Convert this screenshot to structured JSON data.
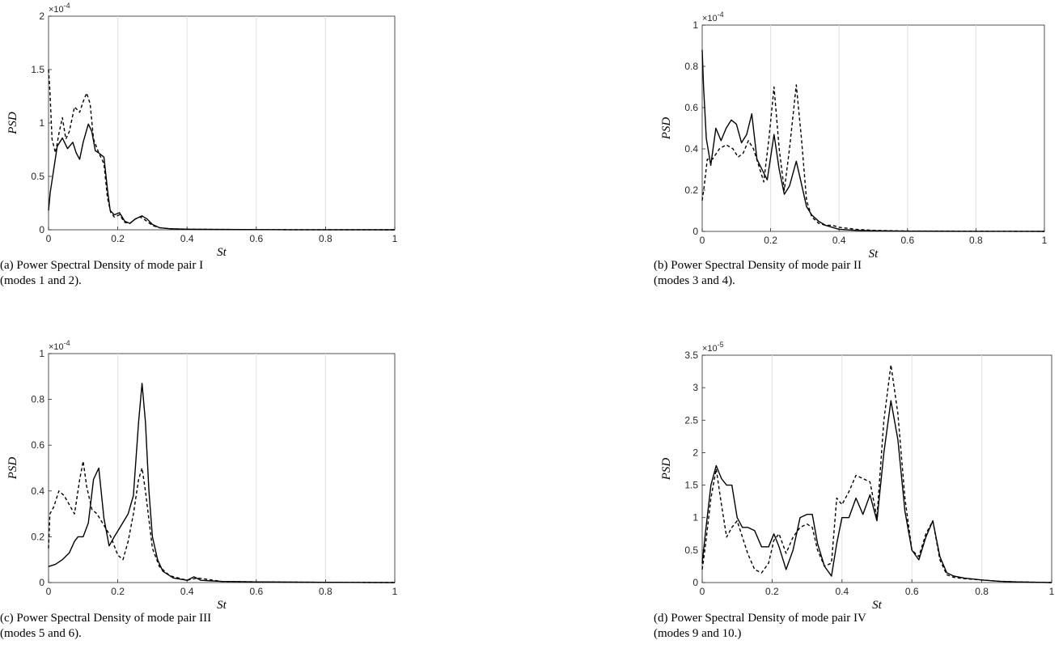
{
  "chart_data": [
    {
      "type": "line",
      "caption": "(a) Power Spectral Density of mode pair I\n(modes 1 and 2).",
      "xlabel": "St",
      "ylabel": "PSD",
      "xlim": [
        0,
        1
      ],
      "ylim": [
        0,
        2
      ],
      "xticks": [
        "0",
        "0.2",
        "0.4",
        "0.6",
        "0.8",
        "1"
      ],
      "yticks": [
        "0",
        "0.5",
        "1",
        "1.5",
        "2"
      ],
      "yexp": "-4",
      "grid": "x",
      "series": [
        {
          "style": "solid",
          "x": [
            0,
            0.005,
            0.012,
            0.025,
            0.04,
            0.055,
            0.07,
            0.08,
            0.09,
            0.1,
            0.115,
            0.125,
            0.135,
            0.145,
            0.16,
            0.17,
            0.178,
            0.19,
            0.205,
            0.22,
            0.235,
            0.25,
            0.27,
            0.285,
            0.3,
            0.32,
            0.35,
            0.4,
            0.5,
            0.7,
            1
          ],
          "y": [
            0.18,
            0.35,
            0.5,
            0.78,
            0.86,
            0.76,
            0.82,
            0.72,
            0.66,
            0.82,
            0.99,
            0.92,
            0.74,
            0.72,
            0.68,
            0.38,
            0.18,
            0.14,
            0.16,
            0.08,
            0.06,
            0.1,
            0.13,
            0.1,
            0.05,
            0.02,
            0.01,
            0.005,
            0.003,
            0.001,
            0
          ]
        },
        {
          "style": "dashed",
          "x": [
            0,
            0.004,
            0.01,
            0.02,
            0.03,
            0.04,
            0.05,
            0.06,
            0.075,
            0.09,
            0.1,
            0.11,
            0.12,
            0.13,
            0.145,
            0.16,
            0.17,
            0.18,
            0.19,
            0.205,
            0.22,
            0.235,
            0.25,
            0.265,
            0.28,
            0.3,
            0.32,
            0.35,
            0.4,
            0.5,
            0.7,
            1
          ],
          "y": [
            1.5,
            1.3,
            0.85,
            0.72,
            0.9,
            1.05,
            0.85,
            0.92,
            1.15,
            1.1,
            1.2,
            1.28,
            1.18,
            0.85,
            0.72,
            0.62,
            0.3,
            0.16,
            0.12,
            0.14,
            0.07,
            0.06,
            0.1,
            0.12,
            0.09,
            0.04,
            0.02,
            0.01,
            0.005,
            0.003,
            0.001,
            0
          ]
        }
      ]
    },
    {
      "type": "line",
      "caption": "(b) Power Spectral Density of mode pair II\n(modes 3 and 4).",
      "xlabel": "St",
      "ylabel": "PSD",
      "xlim": [
        0,
        1
      ],
      "ylim": [
        0,
        1
      ],
      "xticks": [
        "0",
        "0.2",
        "0.4",
        "0.6",
        "0.8",
        "1"
      ],
      "yticks": [
        "0",
        "0.2",
        "0.4",
        "0.6",
        "0.8",
        "1"
      ],
      "yexp": "-4",
      "grid": "x",
      "series": [
        {
          "style": "solid",
          "x": [
            0,
            0.004,
            0.012,
            0.025,
            0.04,
            0.055,
            0.07,
            0.085,
            0.1,
            0.115,
            0.13,
            0.145,
            0.16,
            0.175,
            0.19,
            0.21,
            0.225,
            0.24,
            0.255,
            0.275,
            0.29,
            0.305,
            0.32,
            0.34,
            0.36,
            0.38,
            0.4,
            0.45,
            0.5,
            0.6,
            0.8,
            1
          ],
          "y": [
            0.88,
            0.7,
            0.45,
            0.32,
            0.5,
            0.44,
            0.5,
            0.54,
            0.52,
            0.43,
            0.47,
            0.57,
            0.35,
            0.3,
            0.25,
            0.47,
            0.3,
            0.18,
            0.22,
            0.34,
            0.23,
            0.12,
            0.08,
            0.05,
            0.03,
            0.02,
            0.01,
            0.005,
            0.003,
            0.001,
            0.0005,
            0
          ]
        },
        {
          "style": "dashed",
          "x": [
            0,
            0.006,
            0.015,
            0.03,
            0.05,
            0.07,
            0.09,
            0.105,
            0.12,
            0.135,
            0.15,
            0.165,
            0.18,
            0.195,
            0.21,
            0.225,
            0.24,
            0.255,
            0.275,
            0.29,
            0.305,
            0.32,
            0.34,
            0.36,
            0.38,
            0.4,
            0.45,
            0.5,
            0.6,
            0.8,
            1
          ],
          "y": [
            0.15,
            0.22,
            0.35,
            0.35,
            0.4,
            0.42,
            0.4,
            0.36,
            0.38,
            0.44,
            0.4,
            0.32,
            0.24,
            0.45,
            0.7,
            0.4,
            0.2,
            0.4,
            0.71,
            0.45,
            0.15,
            0.07,
            0.04,
            0.03,
            0.03,
            0.02,
            0.01,
            0.005,
            0.002,
            0.001,
            0
          ]
        }
      ]
    },
    {
      "type": "line",
      "caption": "(c) Power Spectral Density of mode pair III\n(modes 5 and 6).",
      "xlabel": "St",
      "ylabel": "PSD",
      "xlim": [
        0,
        1
      ],
      "ylim": [
        0,
        1
      ],
      "xticks": [
        "0",
        "0.2",
        "0.4",
        "0.6",
        "0.8",
        "1"
      ],
      "yticks": [
        "0",
        "0.2",
        "0.4",
        "0.6",
        "0.8",
        "1"
      ],
      "yexp": "-4",
      "grid": "x",
      "series": [
        {
          "style": "solid",
          "x": [
            0,
            0.02,
            0.04,
            0.06,
            0.075,
            0.085,
            0.1,
            0.115,
            0.13,
            0.145,
            0.16,
            0.175,
            0.19,
            0.21,
            0.23,
            0.245,
            0.26,
            0.27,
            0.28,
            0.29,
            0.3,
            0.315,
            0.33,
            0.36,
            0.4,
            0.42,
            0.44,
            0.5,
            0.6,
            0.8,
            1
          ],
          "y": [
            0.07,
            0.08,
            0.1,
            0.13,
            0.18,
            0.2,
            0.2,
            0.26,
            0.45,
            0.5,
            0.28,
            0.16,
            0.2,
            0.25,
            0.3,
            0.38,
            0.7,
            0.87,
            0.7,
            0.4,
            0.2,
            0.1,
            0.05,
            0.02,
            0.01,
            0.025,
            0.01,
            0.005,
            0.003,
            0.001,
            0
          ]
        },
        {
          "style": "dashed",
          "x": [
            0,
            0.004,
            0.015,
            0.03,
            0.045,
            0.06,
            0.075,
            0.09,
            0.1,
            0.11,
            0.125,
            0.14,
            0.16,
            0.18,
            0.2,
            0.215,
            0.23,
            0.245,
            0.26,
            0.27,
            0.28,
            0.3,
            0.32,
            0.35,
            0.4,
            0.43,
            0.5,
            0.6,
            0.8,
            1
          ],
          "y": [
            0.15,
            0.3,
            0.33,
            0.4,
            0.38,
            0.34,
            0.3,
            0.45,
            0.53,
            0.42,
            0.32,
            0.3,
            0.25,
            0.2,
            0.12,
            0.1,
            0.18,
            0.3,
            0.45,
            0.5,
            0.4,
            0.15,
            0.07,
            0.03,
            0.01,
            0.02,
            0.005,
            0.003,
            0.001,
            0
          ]
        }
      ]
    },
    {
      "type": "line",
      "caption": "(d) Power Spectral Density of mode pair IV\n(modes 9 and 10.)",
      "xlabel": "St",
      "ylabel": "PSD",
      "xlim": [
        0,
        1
      ],
      "ylim": [
        0,
        3.5
      ],
      "xticks": [
        "0",
        "0.2",
        "0.4",
        "0.6",
        "0.8",
        "1"
      ],
      "yticks": [
        "0",
        "0.5",
        "1",
        "1.5",
        "2",
        "2.5",
        "3",
        "3.5"
      ],
      "yexp": "-5",
      "grid": "x",
      "series": [
        {
          "style": "solid",
          "x": [
            0,
            0.01,
            0.025,
            0.04,
            0.055,
            0.07,
            0.085,
            0.1,
            0.115,
            0.13,
            0.15,
            0.17,
            0.19,
            0.205,
            0.22,
            0.24,
            0.26,
            0.28,
            0.3,
            0.315,
            0.33,
            0.35,
            0.37,
            0.385,
            0.4,
            0.42,
            0.44,
            0.46,
            0.48,
            0.5,
            0.52,
            0.54,
            0.56,
            0.58,
            0.6,
            0.62,
            0.64,
            0.66,
            0.68,
            0.7,
            0.72,
            0.75,
            0.8,
            0.85,
            0.9,
            1
          ],
          "y": [
            0.3,
            0.8,
            1.5,
            1.8,
            1.6,
            1.5,
            1.5,
            1.0,
            0.85,
            0.85,
            0.8,
            0.55,
            0.55,
            0.75,
            0.55,
            0.2,
            0.5,
            1.0,
            1.05,
            1.05,
            0.6,
            0.25,
            0.1,
            0.6,
            1.0,
            1.0,
            1.3,
            1.05,
            1.35,
            0.95,
            2.0,
            2.8,
            2.2,
            1.1,
            0.5,
            0.35,
            0.7,
            0.95,
            0.4,
            0.15,
            0.1,
            0.07,
            0.04,
            0.02,
            0.01,
            0
          ]
        },
        {
          "style": "dashed",
          "x": [
            0,
            0.01,
            0.025,
            0.04,
            0.055,
            0.07,
            0.085,
            0.1,
            0.115,
            0.13,
            0.15,
            0.17,
            0.19,
            0.205,
            0.22,
            0.24,
            0.26,
            0.28,
            0.3,
            0.315,
            0.33,
            0.35,
            0.37,
            0.385,
            0.4,
            0.42,
            0.44,
            0.46,
            0.48,
            0.5,
            0.52,
            0.54,
            0.56,
            0.58,
            0.6,
            0.62,
            0.64,
            0.66,
            0.68,
            0.7,
            0.72,
            0.75,
            0.8,
            0.85,
            0.9,
            1
          ],
          "y": [
            0.2,
            0.6,
            1.3,
            1.75,
            1.2,
            0.7,
            0.85,
            0.95,
            0.7,
            0.45,
            0.2,
            0.15,
            0.3,
            0.65,
            0.75,
            0.45,
            0.7,
            0.85,
            0.9,
            0.85,
            0.5,
            0.25,
            0.3,
            1.3,
            1.2,
            1.4,
            1.65,
            1.6,
            1.55,
            1.0,
            2.5,
            3.35,
            2.6,
            1.3,
            0.5,
            0.4,
            0.75,
            0.95,
            0.35,
            0.12,
            0.08,
            0.06,
            0.04,
            0.02,
            0.01,
            0
          ]
        }
      ]
    }
  ]
}
